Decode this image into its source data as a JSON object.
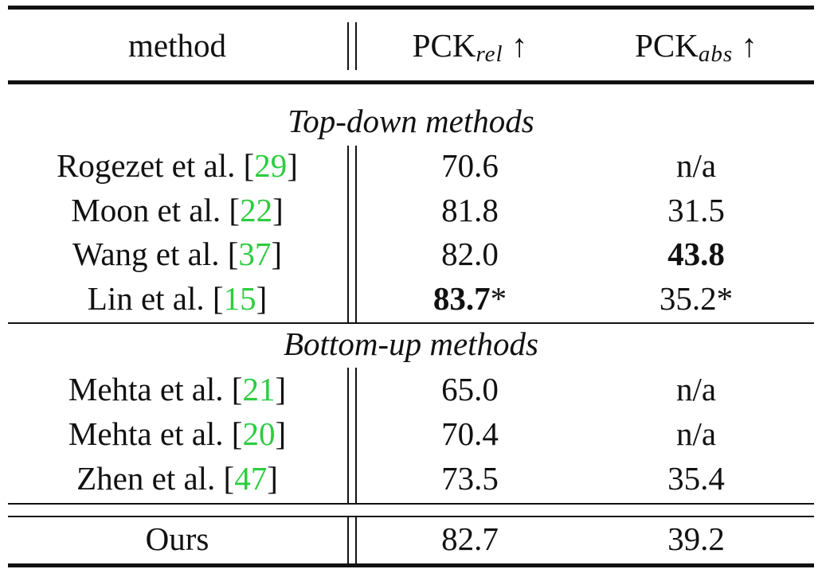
{
  "table": {
    "header": {
      "method": "method",
      "pck_rel_base": "PCK",
      "pck_rel_sub": "rel",
      "pck_abs_base": "PCK",
      "pck_abs_sub": "abs",
      "arrow": "↑"
    },
    "section_top": "Top-down methods",
    "section_bottom": "Bottom-up methods",
    "top_rows": [
      {
        "method": "Rogezet et al. [",
        "ref": "29",
        "close": "]",
        "rel": "70.6",
        "rel_star": "",
        "abs": "n/a",
        "abs_star": ""
      },
      {
        "method": "Moon et al. [",
        "ref": "22",
        "close": "]",
        "rel": "81.8",
        "rel_star": "",
        "abs": "31.5",
        "abs_star": ""
      },
      {
        "method": "Wang et al. [",
        "ref": "37",
        "close": "]",
        "rel": "82.0",
        "rel_star": "",
        "abs": "43.8",
        "abs_star": ""
      },
      {
        "method": "Lin et al. [",
        "ref": "15",
        "close": "]",
        "rel": "83.7",
        "rel_star": "*",
        "abs": "35.2",
        "abs_star": "*"
      }
    ],
    "bottom_rows": [
      {
        "method": "Mehta et al. [",
        "ref": "21",
        "close": "]",
        "rel": "65.0",
        "abs": "n/a"
      },
      {
        "method": "Mehta et al. [",
        "ref": "20",
        "close": "]",
        "rel": "70.4",
        "abs": "n/a"
      },
      {
        "method": "Zhen et al. [",
        "ref": "47",
        "close": "]",
        "rel": "73.5",
        "abs": "35.4"
      }
    ],
    "ours": {
      "method": "Ours",
      "rel": "82.7",
      "abs": "39.2"
    },
    "colors": {
      "ref_link": "#2ecc40",
      "text": "#111111"
    }
  }
}
